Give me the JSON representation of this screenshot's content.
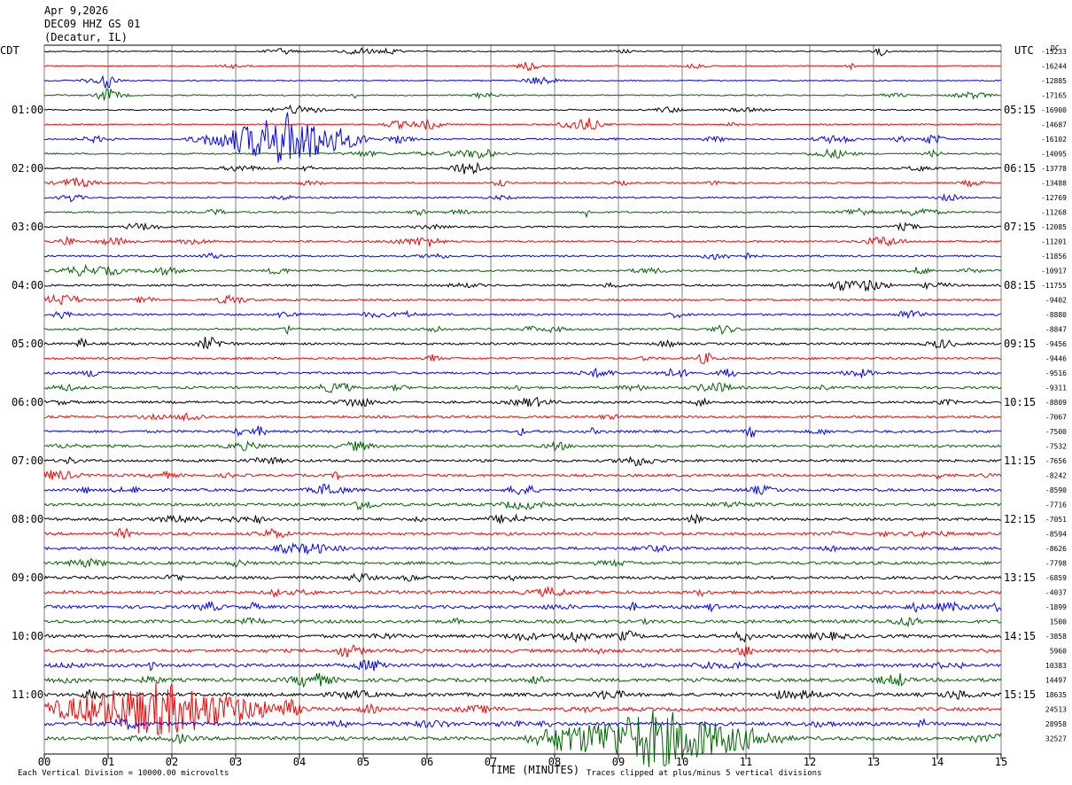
{
  "header": {
    "date": "Apr 9,2026",
    "station": "DEC09 HHZ GS 01",
    "location": "(Decatur, IL)"
  },
  "left_label": "CDT",
  "right_label": "UTC",
  "dc_label": "DC",
  "footer": {
    "left": "Each Vertical Division = 10000.00 microvolts",
    "center": "TIME (MINUTES)",
    "right": "Traces clipped at plus/minus 5 vertical divisions"
  },
  "colors": {
    "cycle": [
      "#000000",
      "#ff0000",
      "#0000ff",
      "#006400"
    ],
    "grid": "#808080"
  },
  "chart_data": {
    "type": "line",
    "x_axis": {
      "range": [
        0,
        15
      ],
      "ticks": [
        "00",
        "01",
        "02",
        "03",
        "04",
        "05",
        "06",
        "07",
        "08",
        "09",
        "10",
        "11",
        "12",
        "13",
        "14",
        "15"
      ],
      "label": "TIME (MINUTES)"
    },
    "left_time_labels": [
      "01:00",
      "02:00",
      "03:00",
      "04:00",
      "05:00",
      "06:00",
      "07:00",
      "08:00",
      "09:00",
      "10:00",
      "11:00"
    ],
    "right_time_labels": [
      "05:15",
      "06:15",
      "07:15",
      "08:15",
      "09:15",
      "10:15",
      "11:15",
      "12:15",
      "13:15",
      "14:15",
      "15:15"
    ],
    "dc_offsets": [
      "-15233",
      "-16244",
      "-12885",
      "-17165",
      "-16900",
      "-14687",
      "-16102",
      "-14095",
      "-13778",
      "-13488",
      "-12769",
      "-11268",
      "-12085",
      "-11201",
      "-11856",
      "-10917",
      "-11755",
      "-9402",
      "-8880",
      "-8847",
      "-9456",
      "-9446",
      "-9516",
      "-9311",
      "-8809",
      "-7067",
      "-7500",
      "-7532",
      "-7656",
      "-8242",
      "-8590",
      "-7716",
      "-7051",
      "-8594",
      "-8626",
      "-7798",
      "-6859",
      "-4037",
      "-1899",
      "1500",
      "-3858",
      "5960",
      "10383",
      "14497",
      "18635",
      "24513",
      "28958",
      "32527"
    ],
    "events": [
      {
        "trace": 6,
        "start_min": 2.8,
        "end_min": 4.8,
        "amplitude": "large"
      },
      {
        "trace": 45,
        "start_min": 0.0,
        "end_min": 3.6,
        "amplitude": "large"
      },
      {
        "trace": 47,
        "start_min": 7.8,
        "end_min": 11.4,
        "amplitude": "large"
      }
    ]
  }
}
